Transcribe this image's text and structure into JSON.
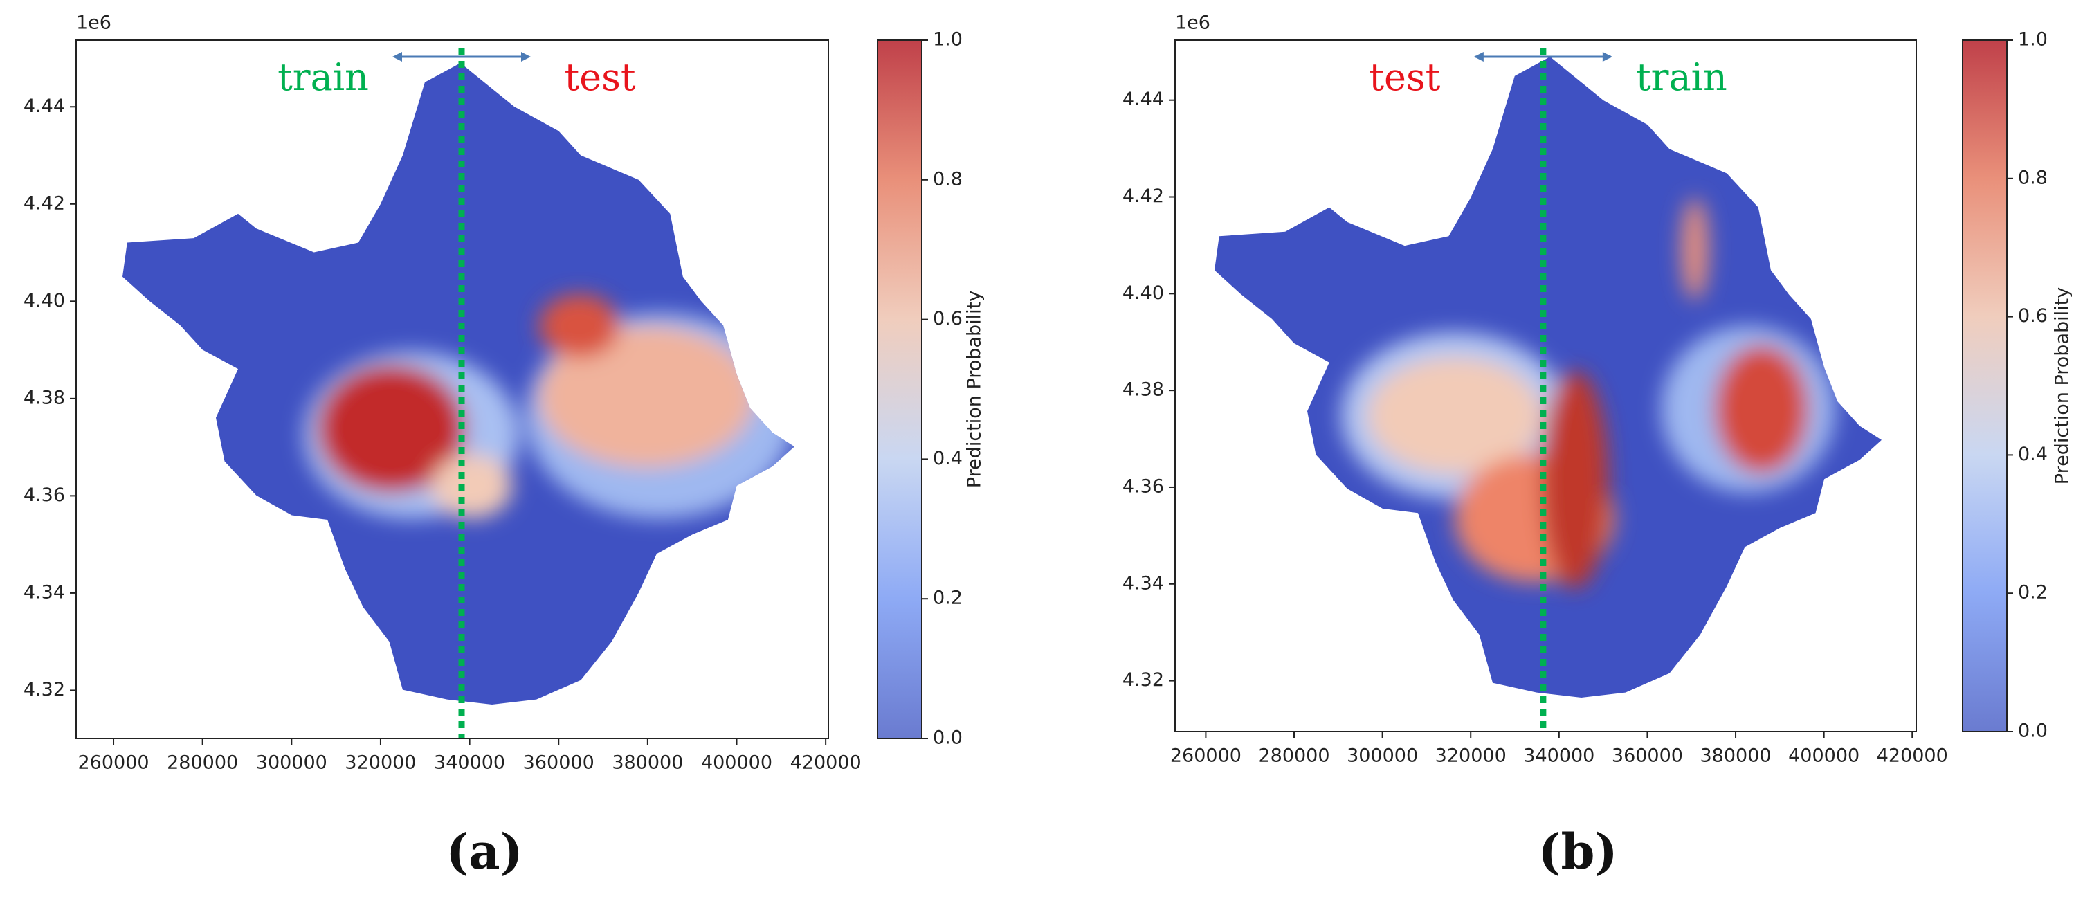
{
  "chart_data": [
    {
      "type": "scatter",
      "panel_label": "(a)",
      "xlim": [
        251600,
        420600
      ],
      "xticks": [
        260000,
        280000,
        300000,
        320000,
        340000,
        360000,
        380000,
        400000,
        420000
      ],
      "ylim": [
        4310100,
        4453700
      ],
      "yticks": [
        {
          "value": 4320000,
          "label": "4.32"
        },
        {
          "value": 4340000,
          "label": "4.34"
        },
        {
          "value": 4360000,
          "label": "4.36"
        },
        {
          "value": 4380000,
          "label": "4.38"
        },
        {
          "value": 4400000,
          "label": "4.40"
        },
        {
          "value": 4420000,
          "label": "4.42"
        },
        {
          "value": 4440000,
          "label": "4.44"
        }
      ],
      "y_offset_label": "1e6",
      "split_x": 338200,
      "split_color": "#00b050",
      "annotations": [
        {
          "text": "train",
          "color": "#00b050"
        },
        {
          "text": "test",
          "color": "#e8141c"
        }
      ],
      "colorbar": {
        "label": "Prediction Probability",
        "lim": [
          0,
          1
        ],
        "ticks": [
          {
            "value": 0,
            "label": "0.0"
          },
          {
            "value": 0.2,
            "label": "0.2"
          },
          {
            "value": 0.4,
            "label": "0.4"
          },
          {
            "value": 0.6,
            "label": "0.6"
          },
          {
            "value": 0.8,
            "label": "0.8"
          },
          {
            "value": 1,
            "label": "1.0"
          }
        ],
        "colors": [
          "#6a7bd0",
          "#8eaaf5",
          "#c9d7f2",
          "#f0cdbd",
          "#e9907a",
          "#c0414a"
        ]
      }
    },
    {
      "type": "scatter",
      "panel_label": "(b)",
      "xlim": [
        253040,
        420900
      ],
      "xticks": [
        260000,
        280000,
        300000,
        320000,
        340000,
        360000,
        380000,
        400000,
        420000
      ],
      "ylim": [
        4309500,
        4452400
      ],
      "yticks": [
        {
          "value": 4320000,
          "label": "4.32"
        },
        {
          "value": 4340000,
          "label": "4.34"
        },
        {
          "value": 4360000,
          "label": "4.36"
        },
        {
          "value": 4380000,
          "label": "4.38"
        },
        {
          "value": 4400000,
          "label": "4.40"
        },
        {
          "value": 4420000,
          "label": "4.42"
        },
        {
          "value": 4440000,
          "label": "4.44"
        }
      ],
      "y_offset_label": "1e6",
      "split_x": 336400,
      "split_color": "#00b050",
      "annotations": [
        {
          "text": "test",
          "color": "#e8141c"
        },
        {
          "text": "train",
          "color": "#00b050"
        }
      ],
      "colorbar": {
        "label": "Prediction Probability",
        "lim": [
          0,
          1
        ],
        "ticks": [
          {
            "value": 0,
            "label": "0.0"
          },
          {
            "value": 0.2,
            "label": "0.2"
          },
          {
            "value": 0.4,
            "label": "0.4"
          },
          {
            "value": 0.6,
            "label": "0.6"
          },
          {
            "value": 0.8,
            "label": "0.8"
          },
          {
            "value": 1,
            "label": "1.0"
          }
        ],
        "colors": [
          "#6a7bd0",
          "#8eaaf5",
          "#c9d7f2",
          "#f0cdbd",
          "#e9907a",
          "#c0414a"
        ]
      }
    }
  ]
}
